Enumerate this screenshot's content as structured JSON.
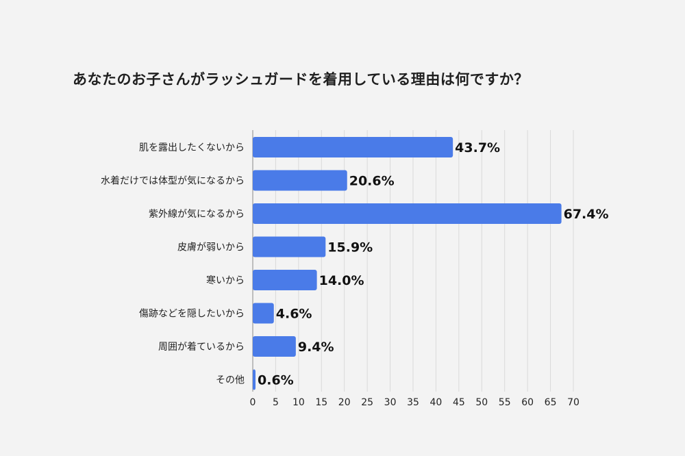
{
  "chart_data": {
    "type": "bar",
    "orientation": "horizontal",
    "title": "あなたのお子さんがラッシュガードを着用している理由は何ですか？",
    "categories": [
      "肌を露出したくないから",
      "水着だけでは体型が気になるから",
      "紫外線が気になるから",
      "皮膚が弱いから",
      "寒いから",
      "傷跡などを隠したいから",
      "周囲が着ているから",
      "その他"
    ],
    "values": [
      43.7,
      20.6,
      67.4,
      15.9,
      14.0,
      4.6,
      9.4,
      0.6
    ],
    "value_labels": [
      "43.7%",
      "20.6%",
      "67.4%",
      "15.9%",
      "14.0%",
      "4.6%",
      "9.4%",
      "0.6%"
    ],
    "xlim": [
      0,
      70
    ],
    "xticks": [
      "0",
      "5",
      "10",
      "15",
      "20",
      "25",
      "30",
      "35",
      "40",
      "45",
      "50",
      "55",
      "60",
      "65",
      "70"
    ],
    "grid": true,
    "legend": "none",
    "bar_color": "#4a7be8"
  }
}
